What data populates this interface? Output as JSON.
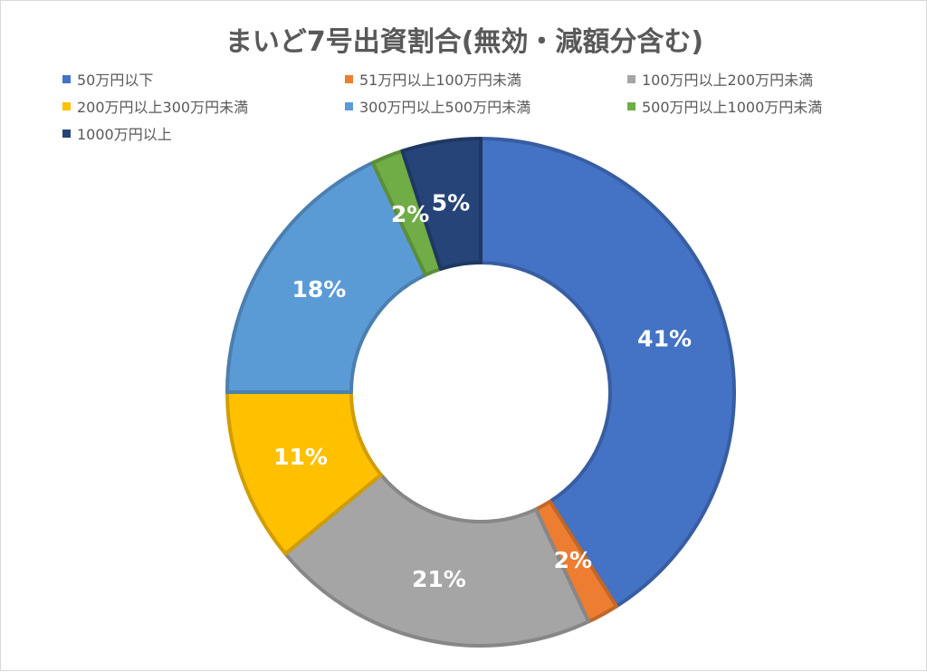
{
  "chart_data": {
    "type": "pie",
    "subtype": "donut",
    "title": "まいど7号出資割合(無効・減額分含む)",
    "legend_position": "top",
    "categories": [
      "50万円以下",
      "51万円以上100万円未満",
      "100万円以上200万円未満",
      "200万円以上300万円未満",
      "300万円以上500万円未満",
      "500万円以上1000万円未満",
      "1000万円以上"
    ],
    "values": [
      41,
      2,
      21,
      11,
      18,
      2,
      5
    ],
    "data_labels": [
      "41%",
      "2%",
      "21%",
      "11%",
      "18%",
      "2%",
      "5%"
    ],
    "colors": [
      "#4472c4",
      "#ed7d31",
      "#a5a5a5",
      "#ffc000",
      "#5b9bd5",
      "#70ad47",
      "#264478"
    ]
  }
}
